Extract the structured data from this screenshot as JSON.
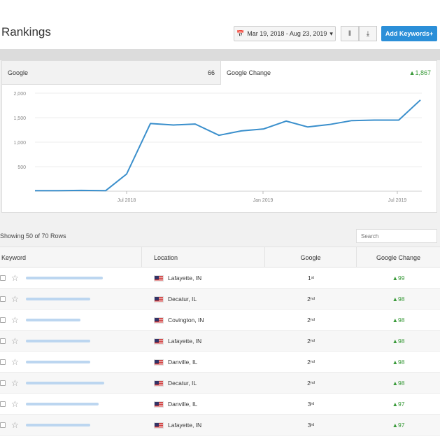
{
  "header": {
    "title": "Rankings",
    "date_range": "Mar 19, 2018 - Aug 23, 2019",
    "add_keywords_label": "Add Keywords"
  },
  "chart_tabs": {
    "google_label": "Google",
    "google_value": "66",
    "change_label": "Google Change",
    "change_value": "▲1,867"
  },
  "chart_data": {
    "type": "line",
    "title": "",
    "xlabel": "",
    "ylabel": "",
    "x_tick_labels": [
      "Jul 2018",
      "Jan 2019",
      "Jul 2019"
    ],
    "y_tick_labels": [
      "500",
      "1,000",
      "1,500",
      "2,000"
    ],
    "ylim": [
      0,
      2000
    ],
    "grid": true,
    "series": [
      {
        "color": "#3a8fcc",
        "values": [
          10,
          10,
          15,
          10,
          350,
          1380,
          1350,
          1370,
          1140,
          1230,
          1270,
          1430,
          1310,
          1360,
          1440,
          1450,
          1450,
          1860
        ]
      }
    ]
  },
  "table": {
    "showing_text": "Showing 50 of 70 Rows",
    "search_placeholder": "Search",
    "columns": [
      "Keyword",
      "Location",
      "Google",
      "Google Change"
    ],
    "rows": [
      {
        "location": "Lafayette, IN",
        "rank": "1",
        "suffix": "st",
        "change": "▲99"
      },
      {
        "location": "Decatur, IL",
        "rank": "2",
        "suffix": "nd",
        "change": "▲98"
      },
      {
        "location": "Covington, IN",
        "rank": "2",
        "suffix": "nd",
        "change": "▲98"
      },
      {
        "location": "Lafayette, IN",
        "rank": "2",
        "suffix": "nd",
        "change": "▲98"
      },
      {
        "location": "Danville, IL",
        "rank": "2",
        "suffix": "nd",
        "change": "▲98"
      },
      {
        "location": "Decatur, IL",
        "rank": "2",
        "suffix": "nd",
        "change": "▲98"
      },
      {
        "location": "Danville, IL",
        "rank": "3",
        "suffix": "rd",
        "change": "▲97"
      },
      {
        "location": "Lafayette, IN",
        "rank": "3",
        "suffix": "rd",
        "change": "▲97"
      }
    ]
  },
  "colors": {
    "accent": "#2b8fd8",
    "positive": "#3a9a3a",
    "line": "#3a8fcc"
  }
}
